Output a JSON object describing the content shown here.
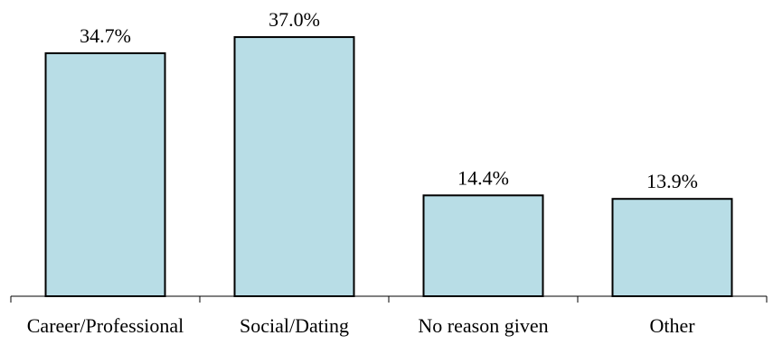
{
  "chart_data": {
    "type": "bar",
    "categories": [
      "Career/Professional",
      "Social/Dating",
      "No reason given",
      "Other"
    ],
    "values": [
      34.7,
      37.0,
      14.4,
      13.9
    ],
    "data_labels": [
      "34.7%",
      "37.0%",
      "14.4%",
      "13.9%"
    ],
    "title": "",
    "xlabel": "",
    "ylabel": "",
    "ylim": [
      0,
      40
    ],
    "grid": false,
    "legend": "none",
    "bar_color": "#b8dde6",
    "bar_edge_color": "#000000"
  }
}
